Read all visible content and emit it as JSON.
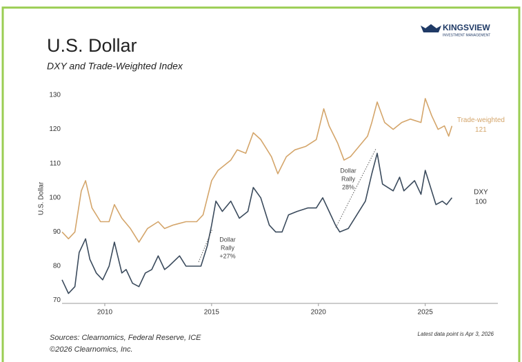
{
  "chart_data": {
    "type": "line",
    "brand": "KINGSVIEW",
    "brand_sub": "INVESTMENT MANAGEMENT",
    "title": "U.S. Dollar",
    "subtitle": "DXY and Trade-Weighted Index",
    "ylabel": "U.S. Dollar",
    "xlim": [
      2008,
      2028.4
    ],
    "ylim": [
      68.5,
      131
    ],
    "xticks": [
      2010,
      2015,
      2020,
      2025
    ],
    "yticks": [
      70,
      80,
      90,
      100,
      110,
      120,
      130
    ],
    "series": [
      {
        "name": "Trade-weighted",
        "end_label": "121",
        "color": "#d4a56a",
        "x": [
          2008.0,
          2008.3,
          2008.6,
          2008.9,
          2009.1,
          2009.4,
          2009.8,
          2010.2,
          2010.45,
          2010.8,
          2011.2,
          2011.6,
          2012.0,
          2012.5,
          2012.8,
          2013.2,
          2013.8,
          2014.3,
          2014.6,
          2015.0,
          2015.3,
          2015.9,
          2016.2,
          2016.6,
          2016.95,
          2017.3,
          2017.8,
          2018.1,
          2018.5,
          2018.9,
          2019.4,
          2019.9,
          2020.25,
          2020.5,
          2020.9,
          2021.2,
          2021.5,
          2021.9,
          2022.3,
          2022.5,
          2022.75,
          2023.1,
          2023.5,
          2023.9,
          2024.3,
          2024.8,
          2025.0,
          2025.3,
          2025.6,
          2025.9,
          2026.1,
          2026.25
        ],
        "values": [
          90,
          88,
          90,
          102,
          105,
          97,
          93,
          93,
          98,
          94,
          91,
          87,
          91,
          93,
          91,
          92,
          93,
          93,
          95,
          105,
          108,
          111,
          114,
          113,
          119,
          117,
          112,
          107,
          112,
          114,
          115,
          117,
          126,
          121,
          116,
          111,
          112,
          115,
          118,
          122,
          128,
          122,
          120,
          122,
          123,
          122,
          129,
          124,
          120,
          121,
          118,
          121
        ]
      },
      {
        "name": "DXY",
        "end_label": "100",
        "color": "#3a4a5c",
        "x": [
          2008.0,
          2008.3,
          2008.6,
          2008.8,
          2009.1,
          2009.3,
          2009.6,
          2009.9,
          2010.2,
          2010.45,
          2010.8,
          2011.0,
          2011.3,
          2011.6,
          2011.9,
          2012.2,
          2012.5,
          2012.8,
          2013.0,
          2013.5,
          2013.8,
          2014.0,
          2014.5,
          2014.8,
          2015.0,
          2015.2,
          2015.5,
          2015.9,
          2016.3,
          2016.7,
          2016.95,
          2017.3,
          2017.7,
          2018.0,
          2018.3,
          2018.6,
          2019.0,
          2019.5,
          2019.9,
          2020.2,
          2020.5,
          2020.8,
          2021.0,
          2021.4,
          2021.8,
          2022.2,
          2022.5,
          2022.75,
          2023.0,
          2023.5,
          2023.8,
          2024.0,
          2024.5,
          2024.8,
          2025.0,
          2025.2,
          2025.5,
          2025.8,
          2026.0,
          2026.25
        ],
        "values": [
          76,
          72,
          74,
          84,
          88,
          82,
          78,
          76,
          80,
          87,
          78,
          79,
          75,
          74,
          78,
          79,
          83,
          79,
          80,
          83,
          80,
          80,
          80,
          86,
          92,
          99,
          96,
          99,
          94,
          96,
          103,
          100,
          92,
          90,
          90,
          95,
          96,
          97,
          97,
          100,
          96,
          92,
          90,
          91,
          95,
          99,
          107,
          113,
          104,
          102,
          106,
          102,
          105,
          101,
          108,
          104,
          98,
          99,
          98,
          100
        ]
      }
    ],
    "annotations": [
      {
        "lines": [
          "Dollar",
          "Rally",
          "+27%"
        ]
      },
      {
        "lines": [
          "Dollar",
          "Rally",
          "28%"
        ]
      }
    ],
    "sources": "Sources: Clearnomics, Federal Reserve, ICE",
    "copyright": "©2026 Clearnomics, Inc.",
    "note": "Latest data point is Apr 3, 2026"
  }
}
